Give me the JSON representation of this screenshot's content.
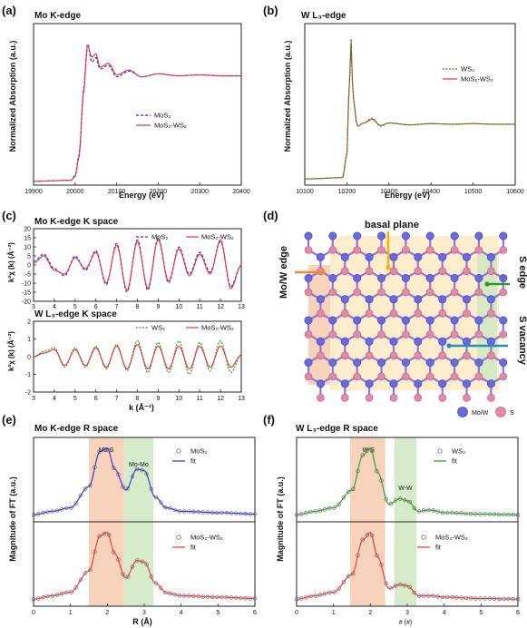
{
  "panels": {
    "a": {
      "label": "(a)",
      "title": "Mo K-edge",
      "xlabel": "Energy (eV)",
      "ylabel": "Normalized Absorption (a.u.)",
      "xticks": [
        "19900",
        "20000",
        "20100",
        "20200",
        "20300",
        "20400"
      ],
      "legend": [
        "MoS₂",
        "MoS₂-WS₂"
      ]
    },
    "b": {
      "label": "(b)",
      "title": "W L₃-edge",
      "xlabel": "Energy (eV)",
      "ylabel": "Normalized Absorption (a.u.)",
      "xticks": [
        "10100",
        "10200",
        "10300",
        "10400",
        "10500",
        "10600"
      ],
      "legend": [
        "WS₂",
        "MoS₂-WS₂"
      ]
    },
    "c": {
      "label": "(c)",
      "top_title": "Mo K-edge K space",
      "bottom_title": "W L₃-edge K space",
      "xlabel": "k (Å⁻¹)",
      "top_ylabel": "k²χ (k) (Å⁻²)",
      "bottom_ylabel": "k²χ (k) (Å⁻²)",
      "xticks": [
        "3",
        "4",
        "5",
        "6",
        "7",
        "8",
        "9",
        "10",
        "11",
        "12",
        "13"
      ],
      "top_yticks": [
        "20",
        "15",
        "10",
        "5",
        "0",
        "-5",
        "-10",
        "-15",
        "-20"
      ],
      "bottom_yticks": [
        "2",
        "1",
        "0",
        "-1",
        "-2"
      ],
      "top_legend": [
        "MoS₂",
        "MoS₂-WS₂"
      ],
      "bottom_legend": [
        "WS₂",
        "MoS₂-WS₂"
      ]
    },
    "d": {
      "label": "(d)",
      "annotations": {
        "basal": "basal plane",
        "edge_mo": "Mo/W edge",
        "edge_s": "S edge",
        "vacancy": "S vacancy"
      },
      "legend": [
        "Mo/W",
        "S"
      ]
    },
    "e": {
      "label": "(e)",
      "title": "Mo K-edge R space",
      "xlabel": "R (Å)",
      "ylabel": "Magnitude of FT (a.u.)",
      "xticks": [
        "0",
        "1",
        "2",
        "3",
        "4",
        "5",
        "6"
      ],
      "band1": "Mo-S",
      "band2": "Mo-Mo",
      "top_legend": [
        "MoS₂",
        "fit"
      ],
      "bottom_legend": [
        "MoS₂-WS₂",
        "fit"
      ]
    },
    "f": {
      "label": "(f)",
      "title": "W L₃-edge R space",
      "xlabel": "# (#)",
      "ylabel": "Magnitude of FT (a.u.)",
      "xticks": [
        "0",
        "1",
        "2",
        "3",
        "4",
        "5",
        "6"
      ],
      "band1": "W-S",
      "band2": "W-W",
      "top_legend": [
        "WS₂",
        "fit"
      ],
      "bottom_legend": [
        "MoS₂-WS₂",
        "fit"
      ]
    }
  },
  "colors": {
    "blue": "#2b2fd6",
    "red": "#e8333c",
    "green": "#2a9a2a",
    "dkgreen": "#1e8a1e",
    "orange": "#f08a3a",
    "teal": "#1f8fc4",
    "gold": "#f2b600",
    "moatom": "#6a6ae0",
    "satom": "#e28aa8",
    "bandOrange": "#f7cbb0",
    "bandGreen": "#cfe7c0"
  },
  "chart_data": [
    {
      "type": "line",
      "panel": "a",
      "title": "Mo K-edge",
      "xlabel": "Energy (eV)",
      "ylabel": "Normalized Absorption (a.u.)",
      "xlim": [
        19900,
        20400
      ],
      "series": [
        {
          "name": "MoS₂",
          "x": [
            19900,
            19990,
            20000,
            20010,
            20020,
            20030,
            20040,
            20050,
            20060,
            20080,
            20100,
            20130,
            20160,
            20200,
            20250,
            20300,
            20350,
            20400
          ],
          "y": [
            0.02,
            0.03,
            0.08,
            0.3,
            0.95,
            1.45,
            1.25,
            1.3,
            1.18,
            1.22,
            1.1,
            1.16,
            1.1,
            1.13,
            1.11,
            1.12,
            1.11,
            1.11
          ]
        },
        {
          "name": "MoS₂-WS₂",
          "x": [
            19900,
            19990,
            20000,
            20010,
            20020,
            20030,
            20040,
            20050,
            20060,
            20080,
            20100,
            20130,
            20160,
            20200,
            20250,
            20300,
            20350,
            20400
          ],
          "y": [
            0.02,
            0.03,
            0.07,
            0.28,
            0.92,
            1.43,
            1.3,
            1.34,
            1.2,
            1.24,
            1.12,
            1.17,
            1.1,
            1.13,
            1.11,
            1.12,
            1.11,
            1.11
          ]
        }
      ]
    },
    {
      "type": "line",
      "panel": "b",
      "title": "W L₃-edge",
      "xlabel": "Energy (eV)",
      "ylabel": "Normalized Absorption (a.u.)",
      "xlim": [
        10100,
        10600
      ],
      "series": [
        {
          "name": "WS₂",
          "x": [
            10100,
            10190,
            10200,
            10205,
            10210,
            10215,
            10225,
            10240,
            10260,
            10280,
            10300,
            10350,
            10400,
            10450,
            10500,
            10550,
            10600
          ],
          "y": [
            0.1,
            0.12,
            0.5,
            1.5,
            2.35,
            1.4,
            0.95,
            1.0,
            1.08,
            0.95,
            1.0,
            0.97,
            0.99,
            0.98,
            0.99,
            0.98,
            0.98
          ]
        },
        {
          "name": "MoS₂-WS₂",
          "x": [
            10100,
            10190,
            10200,
            10205,
            10210,
            10215,
            10225,
            10240,
            10260,
            10280,
            10300,
            10350,
            10400,
            10450,
            10500,
            10550,
            10600
          ],
          "y": [
            0.1,
            0.12,
            0.48,
            1.48,
            2.3,
            1.38,
            0.95,
            1.0,
            1.06,
            0.96,
            1.0,
            0.97,
            0.99,
            0.98,
            0.99,
            0.98,
            0.98
          ]
        }
      ]
    },
    {
      "type": "line",
      "panel": "c-top",
      "title": "Mo K-edge K space",
      "xlabel": "k (Å⁻¹)",
      "xlim": [
        3,
        13
      ],
      "ylim": [
        -20,
        20
      ],
      "series": [
        {
          "name": "MoS₂",
          "x": [
            3,
            3.5,
            4,
            4.5,
            5,
            5.5,
            6,
            6.5,
            7,
            7.5,
            8,
            8.5,
            9,
            9.5,
            10,
            10.5,
            11,
            11.5,
            12,
            12.5,
            13
          ],
          "y": [
            2,
            6,
            -2,
            -6,
            5,
            -3,
            8,
            -11,
            12,
            -15,
            14,
            -14,
            15,
            -10,
            10,
            -5,
            7,
            -4,
            13,
            -12,
            0
          ]
        },
        {
          "name": "MoS₂-WS₂",
          "x": [
            3,
            3.5,
            4,
            4.5,
            5,
            5.5,
            6,
            6.5,
            7,
            7.5,
            8,
            8.5,
            9,
            9.5,
            10,
            10.5,
            11,
            11.5,
            12,
            12.5,
            13
          ],
          "y": [
            1,
            5,
            -3,
            -5,
            4,
            -2,
            7,
            -10,
            11,
            -14,
            13,
            -13,
            14,
            -9,
            9,
            -6,
            6,
            -5,
            14,
            -13,
            0
          ]
        }
      ]
    },
    {
      "type": "line",
      "panel": "c-bottom",
      "title": "W L₃-edge K space",
      "xlabel": "k (Å⁻¹)",
      "xlim": [
        3,
        13
      ],
      "ylim": [
        -2,
        2
      ],
      "series": [
        {
          "name": "WS₂",
          "x": [
            3,
            3.5,
            4,
            4.5,
            5,
            5.5,
            6,
            6.5,
            7,
            7.5,
            8,
            8.5,
            9,
            9.5,
            10,
            10.5,
            11,
            11.5,
            12,
            12.5,
            13
          ],
          "y": [
            0,
            0.3,
            0.5,
            -0.6,
            0.5,
            -0.6,
            0.6,
            -0.7,
            0.7,
            -0.8,
            0.9,
            -0.9,
            0.8,
            -0.9,
            0.9,
            -1.0,
            0.8,
            -0.8,
            0.9,
            -0.9,
            0.1
          ]
        },
        {
          "name": "MoS₂-WS₂",
          "x": [
            3,
            3.5,
            4,
            4.5,
            5,
            5.5,
            6,
            6.5,
            7,
            7.5,
            8,
            8.5,
            9,
            9.5,
            10,
            10.5,
            11,
            11.5,
            12,
            12.5,
            13
          ],
          "y": [
            0,
            0.2,
            0.4,
            -0.5,
            0.4,
            -0.5,
            0.5,
            -0.6,
            0.6,
            -0.7,
            0.7,
            -0.7,
            0.6,
            -0.7,
            0.6,
            -0.7,
            0.6,
            -0.6,
            0.6,
            -0.6,
            0.1
          ]
        }
      ]
    },
    {
      "type": "line",
      "panel": "e",
      "title": "Mo K-edge R space",
      "xlabel": "R (Å)",
      "xlim": [
        0,
        6
      ],
      "series": [
        {
          "name": "MoS₂",
          "x": [
            0,
            0.5,
            1,
            1.5,
            1.8,
            2.0,
            2.2,
            2.5,
            2.8,
            3.0,
            3.3,
            3.6,
            4,
            5,
            6
          ],
          "y": [
            0.05,
            0.1,
            0.15,
            0.45,
            0.95,
            1.0,
            0.7,
            0.4,
            0.7,
            0.68,
            0.3,
            0.15,
            0.1,
            0.08,
            0.06
          ]
        },
        {
          "name": "MoS₂-WS₂",
          "x": [
            0,
            0.5,
            1,
            1.5,
            1.8,
            2.0,
            2.2,
            2.5,
            2.8,
            3.0,
            3.3,
            3.6,
            4,
            5,
            6
          ],
          "y": [
            0.05,
            0.1,
            0.15,
            0.45,
            0.95,
            1.0,
            0.7,
            0.35,
            0.6,
            0.58,
            0.28,
            0.14,
            0.1,
            0.08,
            0.06
          ]
        }
      ]
    },
    {
      "type": "line",
      "panel": "f",
      "title": "W L₃-edge R space",
      "xlabel": "# (#)",
      "xlim": [
        0,
        6
      ],
      "series": [
        {
          "name": "WS₂",
          "x": [
            0,
            0.5,
            1,
            1.5,
            1.8,
            2.0,
            2.2,
            2.5,
            2.8,
            3.0,
            3.3,
            3.6,
            4,
            5,
            6
          ],
          "y": [
            0.05,
            0.1,
            0.15,
            0.4,
            0.9,
            1.0,
            0.65,
            0.2,
            0.28,
            0.25,
            0.1,
            0.12,
            0.08,
            0.06,
            0.05
          ]
        },
        {
          "name": "MoS₂-WS₂",
          "x": [
            0,
            0.5,
            1,
            1.5,
            1.8,
            2.0,
            2.2,
            2.5,
            2.8,
            3.0,
            3.3,
            3.6,
            4,
            5,
            6
          ],
          "y": [
            0.05,
            0.1,
            0.15,
            0.4,
            0.9,
            1.0,
            0.65,
            0.2,
            0.26,
            0.24,
            0.1,
            0.1,
            0.08,
            0.06,
            0.05
          ]
        }
      ]
    }
  ]
}
